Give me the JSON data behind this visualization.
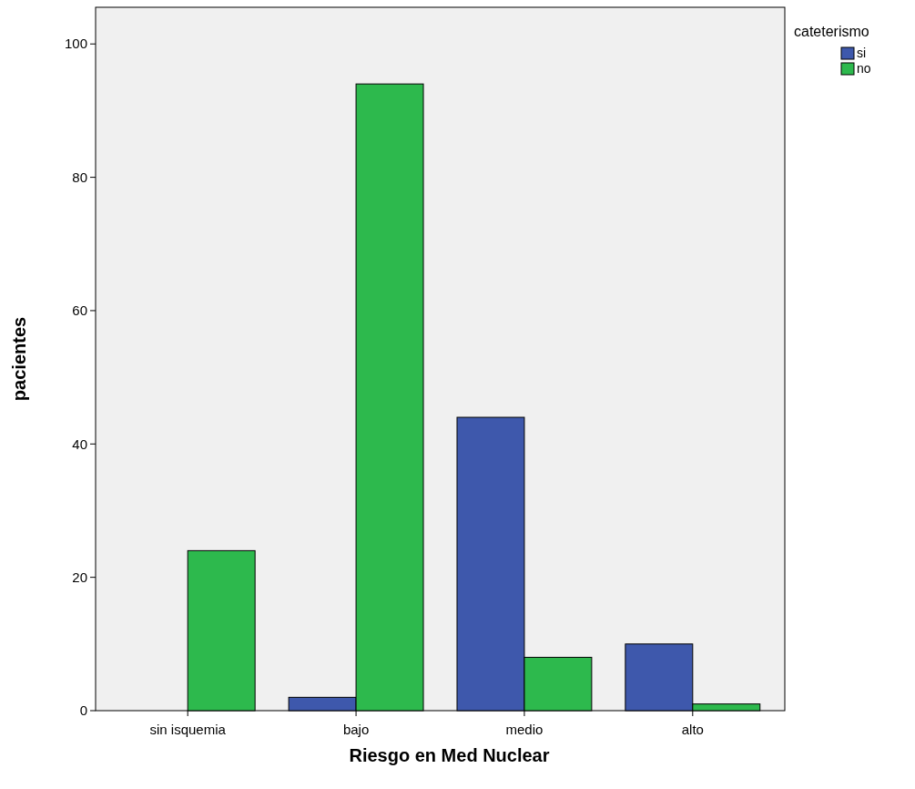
{
  "chart_data": {
    "type": "bar",
    "xlabel": "Riesgo en Med Nuclear",
    "ylabel": "pacientes",
    "legend_title": "cateterismo",
    "categories": [
      "sin isquemia",
      "bajo",
      "medio",
      "alto"
    ],
    "series": [
      {
        "name": "si",
        "color": "#3e58ac",
        "values": [
          null,
          2,
          44,
          10
        ]
      },
      {
        "name": "no",
        "color": "#2db94d",
        "values": [
          24,
          94,
          8,
          1
        ]
      }
    ],
    "ylim": [
      0,
      105.5
    ],
    "yticks": [
      0,
      20,
      40,
      60,
      80,
      100
    ],
    "grid": false,
    "legend": "top right"
  }
}
